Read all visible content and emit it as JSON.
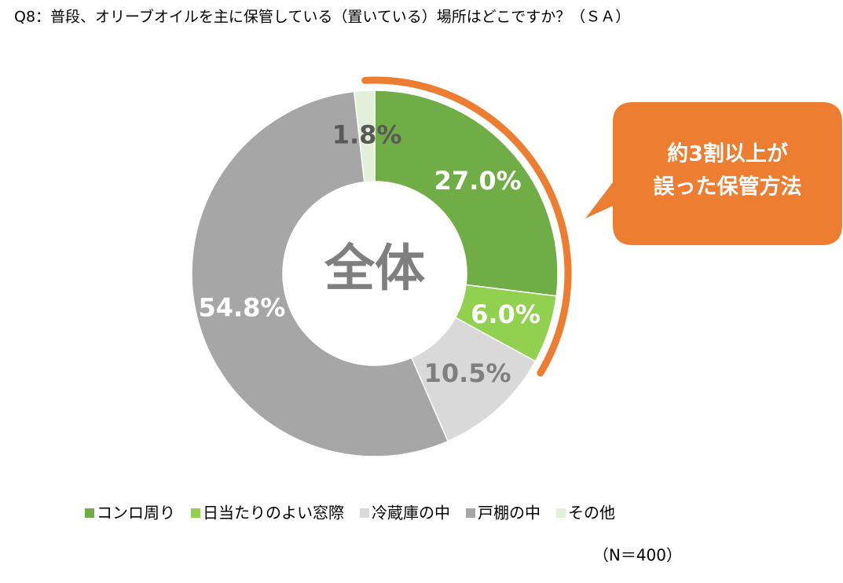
{
  "chart_data": {
    "type": "donut",
    "title": "Q8：普段、オリーブオイルを主に保管している（置いている）場所はどこですか？（ＳＡ）",
    "center_label": "全体",
    "categories": [
      "コンロ周り",
      "日当たりのよい窓際",
      "冷蔵庫の中",
      "戸棚の中",
      "その他"
    ],
    "values": [
      27.0,
      6.0,
      10.5,
      54.8,
      1.8
    ],
    "value_labels": [
      "27.0%",
      "6.0%",
      "10.5%",
      "54.8%",
      "1.8%"
    ],
    "colors": [
      "#70ad47",
      "#92d050",
      "#d9d9d9",
      "#a6a6a6",
      "#e2f0d9"
    ],
    "value_label_colors": [
      "#ffffff",
      "#ffffff",
      "#7f7f7f",
      "#ffffff",
      "#595959"
    ],
    "callout": [
      "約3割以上が",
      "誤った保管方法"
    ],
    "callout_color": "#ed7d31",
    "note": "（N＝400）",
    "legend": "bottom"
  }
}
